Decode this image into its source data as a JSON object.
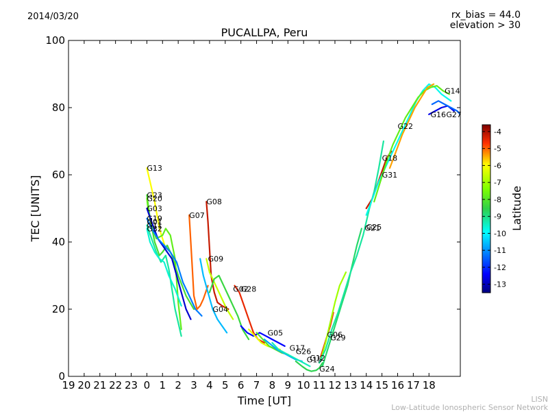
{
  "header": {
    "date": "2014/03/20",
    "rx_bias": "rx_bias = 44.0",
    "elevation": "elevation > 30"
  },
  "footer": {
    "short": "LISN",
    "full": "Low-Latitude Ionospheric Sensor Network"
  },
  "chart_data": {
    "type": "scatter",
    "title": "PUCALLPA, Peru",
    "xlabel": "Time [UT]",
    "ylabel": "TEC [UNITS]",
    "x_tick_labels": [
      "19",
      "20",
      "21",
      "22",
      "23",
      "0",
      "1",
      "2",
      "3",
      "4",
      "5",
      "6",
      "7",
      "8",
      "9",
      "10",
      "11",
      "12",
      "13",
      "14",
      "15",
      "16",
      "17",
      "18"
    ],
    "y_ticks": [
      0,
      20,
      40,
      60,
      80,
      100
    ],
    "xlim": [
      19,
      44
    ],
    "ylim": [
      0,
      100
    ],
    "colorbar": {
      "label": "Latitude",
      "ticks": [
        -4,
        -5,
        -6,
        -7,
        -8,
        -9,
        -10,
        -11,
        -12,
        -13
      ],
      "range": [
        -13.5,
        -3.6
      ]
    },
    "series": [
      {
        "name": "G13",
        "lat": -6.0,
        "points": [
          [
            24.0,
            62
          ],
          [
            24.2,
            58
          ],
          [
            24.5,
            52
          ],
          [
            24.8,
            44
          ],
          [
            25.0,
            41
          ],
          [
            25.2,
            38
          ]
        ]
      },
      {
        "name": "G23",
        "lat": -8.2,
        "points": [
          [
            24.0,
            54
          ],
          [
            24.2,
            47
          ],
          [
            24.5,
            40
          ],
          [
            24.8,
            36
          ],
          [
            25.0,
            37
          ],
          [
            25.3,
            39
          ],
          [
            25.6,
            36
          ],
          [
            26.0,
            30
          ],
          [
            26.5,
            24
          ],
          [
            27.0,
            20
          ]
        ]
      },
      {
        "name": "G20",
        "lat": -7.8,
        "points": [
          [
            24.0,
            53
          ],
          [
            24.1,
            49
          ],
          [
            24.3,
            45
          ],
          [
            24.6,
            41
          ],
          [
            25.0,
            42
          ],
          [
            25.2,
            44
          ],
          [
            25.5,
            42
          ],
          [
            25.8,
            35
          ],
          [
            26.0,
            22
          ],
          [
            26.2,
            14
          ]
        ]
      },
      {
        "name": "G03",
        "lat": -12.8,
        "points": [
          [
            24.0,
            50
          ],
          [
            24.3,
            46
          ],
          [
            24.7,
            41
          ],
          [
            25.0,
            39
          ],
          [
            25.3,
            37
          ],
          [
            25.6,
            35
          ],
          [
            25.9,
            30
          ],
          [
            26.2,
            25
          ],
          [
            26.5,
            20
          ],
          [
            26.8,
            17
          ]
        ]
      },
      {
        "name": "G19",
        "lat": -11.2,
        "points": [
          [
            24.0,
            47
          ],
          [
            24.3,
            44
          ],
          [
            24.7,
            41
          ],
          [
            25.1,
            39
          ],
          [
            25.5,
            37
          ],
          [
            25.9,
            34
          ],
          [
            26.3,
            28
          ],
          [
            26.7,
            24
          ],
          [
            27.1,
            20
          ],
          [
            27.5,
            18
          ]
        ]
      },
      {
        "name": "G01",
        "lat": -9.2,
        "points": [
          [
            24.0,
            45
          ],
          [
            24.3,
            41
          ],
          [
            24.6,
            37
          ],
          [
            24.9,
            34
          ],
          [
            25.2,
            36
          ],
          [
            25.4,
            32
          ],
          [
            25.6,
            26
          ],
          [
            25.8,
            20
          ],
          [
            26.0,
            16
          ],
          [
            26.2,
            12
          ]
        ]
      },
      {
        "name": "G32",
        "lat": -9.6,
        "points": [
          [
            24.0,
            44
          ],
          [
            24.2,
            40
          ],
          [
            24.5,
            37
          ],
          [
            24.8,
            35
          ],
          [
            25.1,
            34
          ],
          [
            25.4,
            30
          ],
          [
            25.8,
            26
          ],
          [
            26.2,
            21
          ]
        ]
      },
      {
        "name": "G07",
        "lat": -5.0,
        "points": [
          [
            26.7,
            48
          ],
          [
            26.8,
            40
          ],
          [
            26.9,
            32
          ],
          [
            27.0,
            24
          ],
          [
            27.2,
            20
          ],
          [
            27.4,
            21
          ],
          [
            27.6,
            23
          ],
          [
            27.9,
            27
          ]
        ]
      },
      {
        "name": "G08",
        "lat": -4.2,
        "points": [
          [
            27.8,
            52
          ],
          [
            27.9,
            46
          ],
          [
            28.0,
            38
          ],
          [
            28.1,
            30
          ],
          [
            28.3,
            25
          ],
          [
            28.5,
            22
          ],
          [
            28.8,
            21
          ],
          [
            29.2,
            20
          ]
        ]
      },
      {
        "name": "G09",
        "lat": -6.6,
        "points": [
          [
            27.8,
            35
          ],
          [
            28.0,
            31
          ],
          [
            28.3,
            28
          ],
          [
            28.7,
            24
          ],
          [
            29.1,
            20
          ],
          [
            29.5,
            17
          ]
        ]
      },
      {
        "name": "G04",
        "lat": -10.6,
        "points": [
          [
            27.4,
            35
          ],
          [
            27.6,
            30
          ],
          [
            27.9,
            25
          ],
          [
            28.2,
            20
          ],
          [
            28.5,
            17
          ],
          [
            28.8,
            15
          ],
          [
            29.1,
            13
          ]
        ]
      },
      {
        "name": "G02",
        "lat": -8.4,
        "points": [
          [
            28.0,
            25
          ],
          [
            28.3,
            29
          ],
          [
            28.6,
            30
          ],
          [
            28.9,
            27
          ],
          [
            29.2,
            24
          ],
          [
            29.5,
            21
          ],
          [
            29.8,
            18
          ],
          [
            30.1,
            14
          ],
          [
            30.5,
            11
          ]
        ]
      },
      {
        "name": "G28",
        "lat": -4.5,
        "points": [
          [
            29.6,
            27
          ],
          [
            29.9,
            25
          ],
          [
            30.2,
            21
          ],
          [
            30.5,
            17
          ],
          [
            30.8,
            13
          ],
          [
            31.1,
            11
          ],
          [
            31.5,
            10
          ]
        ]
      },
      {
        "name": "G05",
        "lat": -12.4,
        "points": [
          [
            30.0,
            15
          ],
          [
            30.4,
            13
          ],
          [
            30.8,
            12
          ],
          [
            31.2,
            13
          ],
          [
            31.6,
            12
          ],
          [
            32.0,
            11
          ],
          [
            32.4,
            10
          ],
          [
            32.8,
            9
          ]
        ]
      },
      {
        "name": "G17",
        "lat": -6.2,
        "points": [
          [
            30.5,
            14
          ],
          [
            30.9,
            12
          ],
          [
            31.3,
            10
          ],
          [
            31.7,
            9
          ],
          [
            32.1,
            8.5
          ],
          [
            32.5,
            8
          ]
        ]
      },
      {
        "name": "G26",
        "lat": -8.0,
        "points": [
          [
            31.0,
            13
          ],
          [
            31.4,
            11
          ],
          [
            31.8,
            9
          ],
          [
            32.2,
            8
          ],
          [
            32.6,
            7
          ],
          [
            33.0,
            6.5
          ]
        ]
      },
      {
        "name": "G15",
        "lat": -10.8,
        "points": [
          [
            31.5,
            11
          ],
          [
            31.9,
            9.5
          ],
          [
            32.3,
            8
          ],
          [
            32.7,
            7
          ],
          [
            33.1,
            6
          ],
          [
            33.5,
            5
          ],
          [
            33.9,
            4.5
          ]
        ]
      },
      {
        "name": "G12",
        "lat": -9.4,
        "points": [
          [
            32.0,
            10
          ],
          [
            32.4,
            8
          ],
          [
            32.8,
            7
          ],
          [
            33.2,
            6
          ],
          [
            33.6,
            5
          ],
          [
            34.0,
            4
          ],
          [
            34.4,
            3
          ]
        ]
      },
      {
        "name": "G24",
        "lat": -8.6,
        "points": [
          [
            33.5,
            4.5
          ],
          [
            33.9,
            3
          ],
          [
            34.2,
            2
          ],
          [
            34.5,
            1.5
          ],
          [
            34.8,
            1.8
          ],
          [
            35.0,
            2.5
          ],
          [
            35.2,
            4
          ]
        ]
      },
      {
        "name": "G06",
        "lat": -4.6,
        "points": [
          [
            35.1,
            6
          ],
          [
            35.3,
            9
          ],
          [
            35.5,
            12
          ],
          [
            35.7,
            15
          ],
          [
            35.9,
            19
          ]
        ]
      },
      {
        "name": "G29",
        "lat": -7.0,
        "points": [
          [
            35.1,
            5
          ],
          [
            35.4,
            10
          ],
          [
            35.7,
            16
          ],
          [
            36.0,
            22
          ],
          [
            36.3,
            27
          ],
          [
            36.7,
            31
          ]
        ]
      },
      {
        "name": "G25",
        "lat": -8.8,
        "points": [
          [
            35.2,
            3
          ],
          [
            35.6,
            9
          ],
          [
            36.0,
            15
          ],
          [
            36.4,
            21
          ],
          [
            36.8,
            27
          ],
          [
            37.1,
            33
          ],
          [
            37.4,
            39
          ],
          [
            37.7,
            44
          ]
        ]
      },
      {
        "name": "G21",
        "lat": -9.2,
        "points": [
          [
            35.0,
            4
          ],
          [
            35.4,
            8
          ],
          [
            35.8,
            14
          ],
          [
            36.2,
            19
          ],
          [
            36.6,
            25
          ],
          [
            37.0,
            31
          ],
          [
            37.4,
            36
          ],
          [
            37.8,
            42
          ],
          [
            38.2,
            50
          ],
          [
            38.5,
            55
          ],
          [
            38.8,
            62
          ],
          [
            39.1,
            70
          ]
        ]
      },
      {
        "name": "G18",
        "lat": -4.2,
        "points": [
          [
            38.0,
            50
          ],
          [
            38.4,
            53
          ],
          [
            38.7,
            57
          ],
          [
            39.0,
            61
          ],
          [
            39.3,
            65
          ],
          [
            39.6,
            67
          ]
        ]
      },
      {
        "name": "G31",
        "lat": -9.8,
        "points": [
          [
            38.0,
            48
          ],
          [
            38.4,
            53
          ],
          [
            38.8,
            58
          ],
          [
            39.2,
            62
          ],
          [
            39.6,
            66
          ],
          [
            40.0,
            70
          ],
          [
            40.4,
            74
          ],
          [
            40.8,
            78
          ],
          [
            41.2,
            82
          ],
          [
            41.6,
            85
          ],
          [
            42.0,
            87
          ],
          [
            42.4,
            86
          ],
          [
            42.8,
            84
          ],
          [
            43.1,
            83
          ],
          [
            43.4,
            82
          ]
        ]
      },
      {
        "name": "G22",
        "lat": -7.8,
        "points": [
          [
            38.5,
            52
          ],
          [
            38.9,
            58
          ],
          [
            39.3,
            64
          ],
          [
            39.7,
            69
          ],
          [
            40.1,
            73
          ],
          [
            40.5,
            77
          ],
          [
            40.9,
            80
          ],
          [
            41.3,
            83
          ],
          [
            41.7,
            85
          ],
          [
            42.1,
            86
          ],
          [
            42.5,
            86.5
          ],
          [
            42.9,
            85
          ],
          [
            43.3,
            84
          ]
        ]
      },
      {
        "name": "G14",
        "lat": -5.4,
        "points": [
          [
            39.5,
            62
          ],
          [
            39.9,
            67
          ],
          [
            40.3,
            72
          ],
          [
            40.7,
            76
          ],
          [
            41.1,
            80
          ],
          [
            41.5,
            83
          ],
          [
            41.9,
            86
          ],
          [
            42.3,
            87
          ]
        ]
      },
      {
        "name": "G16",
        "lat": -12.6,
        "points": [
          [
            42.0,
            78
          ],
          [
            42.4,
            79
          ],
          [
            42.8,
            80
          ],
          [
            43.2,
            80.5
          ],
          [
            43.6,
            79
          ]
        ]
      },
      {
        "name": "G27",
        "lat": -11.4,
        "points": [
          [
            42.2,
            81
          ],
          [
            42.6,
            82
          ],
          [
            43.0,
            81
          ],
          [
            43.4,
            80
          ],
          [
            43.8,
            79
          ],
          [
            44.0,
            78
          ]
        ]
      }
    ],
    "labels": [
      {
        "text": "G13",
        "x": 24.0,
        "y": 62
      },
      {
        "text": "G23",
        "x": 24.0,
        "y": 54
      },
      {
        "text": "G20",
        "x": 24.0,
        "y": 53
      },
      {
        "text": "G03",
        "x": 24.0,
        "y": 50
      },
      {
        "text": "G19",
        "x": 24.0,
        "y": 47
      },
      {
        "text": "G01",
        "x": 24.0,
        "y": 46
      },
      {
        "text": "G11",
        "x": 24.0,
        "y": 45
      },
      {
        "text": "G32",
        "x": 24.0,
        "y": 44
      },
      {
        "text": "G07",
        "x": 26.7,
        "y": 48
      },
      {
        "text": "G08",
        "x": 27.8,
        "y": 52
      },
      {
        "text": "G09",
        "x": 27.9,
        "y": 35
      },
      {
        "text": "G04",
        "x": 28.2,
        "y": 20
      },
      {
        "text": "G02",
        "x": 29.5,
        "y": 26
      },
      {
        "text": "G28",
        "x": 30.0,
        "y": 26
      },
      {
        "text": "G05",
        "x": 31.7,
        "y": 13
      },
      {
        "text": "G17",
        "x": 33.1,
        "y": 8.5
      },
      {
        "text": "G26",
        "x": 33.5,
        "y": 7.5
      },
      {
        "text": "G15",
        "x": 34.2,
        "y": 5
      },
      {
        "text": "G12",
        "x": 34.4,
        "y": 5.5
      },
      {
        "text": "G24",
        "x": 35.0,
        "y": 2.2
      },
      {
        "text": "G06",
        "x": 35.5,
        "y": 12.5
      },
      {
        "text": "G29",
        "x": 35.7,
        "y": 11.5
      },
      {
        "text": "G25",
        "x": 38.0,
        "y": 44.5
      },
      {
        "text": "G21",
        "x": 37.9,
        "y": 44.2
      },
      {
        "text": "G18",
        "x": 39.0,
        "y": 65
      },
      {
        "text": "G31",
        "x": 39.0,
        "y": 60
      },
      {
        "text": "G22",
        "x": 40.0,
        "y": 74.5
      },
      {
        "text": "G16",
        "x": 42.1,
        "y": 78
      },
      {
        "text": "G14",
        "x": 43.0,
        "y": 85
      },
      {
        "text": "G27",
        "x": 43.1,
        "y": 78
      }
    ]
  }
}
